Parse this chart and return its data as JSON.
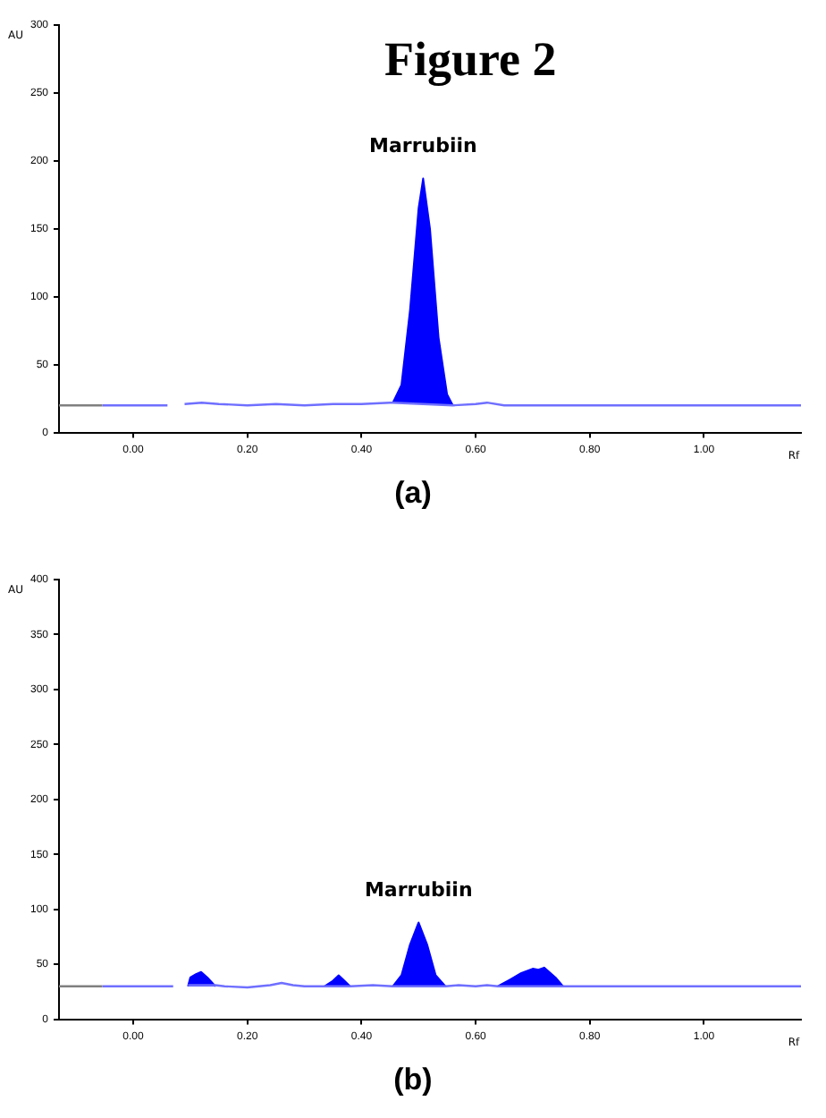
{
  "chart_data": [
    {
      "type": "line",
      "title": "Figure 2",
      "xlabel": "Rf",
      "ylabel": "AU",
      "xlim": [
        -0.13,
        1.17
      ],
      "ylim": [
        0,
        300
      ],
      "xticks": [
        {
          "value": 0,
          "label": "0.00"
        },
        {
          "value": 0.2,
          "label": "0.20"
        },
        {
          "value": 0.4,
          "label": "0.40"
        },
        {
          "value": 0.6,
          "label": "0.60"
        },
        {
          "value": 0.8,
          "label": "0.80"
        },
        {
          "value": 1.0,
          "label": "1.00"
        }
      ],
      "yticks": [
        0,
        50,
        100,
        150,
        200,
        250,
        300
      ],
      "grid": false,
      "legend": false,
      "marker": "none",
      "series": [
        {
          "color": "#808080",
          "x": [
            -0.13,
            -0.054
          ],
          "values": [
            20,
            20
          ]
        },
        {
          "color": "#6f6fff",
          "x": [
            -0.054,
            0.06,
            0.075,
            0.09,
            0.12,
            0.15,
            0.2,
            0.25,
            0.3,
            0.35,
            0.4,
            0.45,
            0.455,
            0.56,
            0.6,
            0.62,
            0.65,
            1.17
          ],
          "values": [
            20,
            20,
            null,
            21,
            22,
            21,
            20,
            21,
            20,
            21,
            21,
            22,
            22,
            20,
            21,
            22,
            20,
            20
          ]
        },
        {
          "type": "area",
          "color": "#0000ff",
          "x": [
            0.455,
            0.47,
            0.485,
            0.5,
            0.508,
            0.52,
            0.535,
            0.55,
            0.56
          ],
          "values": [
            22,
            35,
            90,
            165,
            187,
            150,
            70,
            28,
            20
          ]
        }
      ],
      "annotations": [
        {
          "text": "Marrubiin",
          "x": 0.508,
          "y": 187
        },
        "(a)"
      ]
    },
    {
      "type": "line",
      "xlabel": "Rf",
      "ylabel": "AU",
      "xlim": [
        -0.13,
        1.17
      ],
      "ylim": [
        0,
        400
      ],
      "xticks": [
        {
          "value": 0,
          "label": "0.00"
        },
        {
          "value": 0.2,
          "label": "0.20"
        },
        {
          "value": 0.4,
          "label": "0.40"
        },
        {
          "value": 0.6,
          "label": "0.60"
        },
        {
          "value": 0.8,
          "label": "0.80"
        },
        {
          "value": 1.0,
          "label": "1.00"
        }
      ],
      "yticks": [
        0,
        50,
        100,
        150,
        200,
        250,
        300,
        350,
        400
      ],
      "grid": false,
      "legend": false,
      "marker": "none",
      "series": [
        {
          "color": "#808080",
          "x": [
            -0.13,
            -0.054
          ],
          "values": [
            30,
            30
          ]
        },
        {
          "color": "#6f6fff",
          "x": [
            -0.054,
            0.07,
            0.085,
            0.096,
            0.144,
            0.16,
            0.2,
            0.24,
            0.26,
            0.28,
            0.3,
            0.335,
            0.38,
            0.42,
            0.455,
            0.547,
            0.57,
            0.6,
            0.62,
            0.639,
            0.753,
            0.77,
            1.17
          ],
          "values": [
            30,
            30,
            null,
            31,
            31,
            30,
            29,
            31,
            33,
            31,
            30,
            30,
            30,
            31,
            30,
            30,
            31,
            30,
            31,
            30,
            30,
            30,
            30
          ]
        },
        {
          "type": "area",
          "color": "#0000ff",
          "x": [
            0.096,
            0.1,
            0.11,
            0.119,
            0.13,
            0.144
          ],
          "values": [
            30,
            38,
            41,
            43,
            38,
            30
          ]
        },
        {
          "type": "area",
          "color": "#0000ff",
          "x": [
            0.335,
            0.35,
            0.36,
            0.37,
            0.38
          ],
          "values": [
            30,
            35,
            40,
            35,
            30
          ]
        },
        {
          "type": "area",
          "color": "#0000ff",
          "x": [
            0.455,
            0.47,
            0.485,
            0.5,
            0.515,
            0.53,
            0.547
          ],
          "values": [
            30,
            40,
            68,
            88,
            68,
            40,
            30
          ]
        },
        {
          "type": "area",
          "color": "#0000ff",
          "x": [
            0.639,
            0.66,
            0.68,
            0.7,
            0.71,
            0.72,
            0.74,
            0.753
          ],
          "values": [
            30,
            36,
            42,
            46,
            45,
            47,
            38,
            30
          ]
        }
      ],
      "annotations": [
        {
          "text": "Marrubiin",
          "x": 0.5,
          "y": 88
        },
        "(b)"
      ]
    }
  ]
}
